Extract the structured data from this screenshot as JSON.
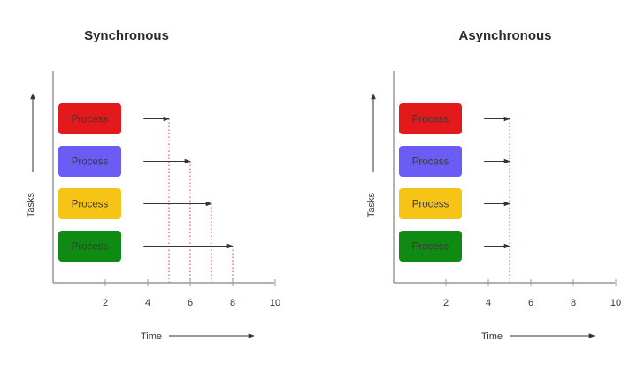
{
  "panels": [
    {
      "id": "sync",
      "title": "Synchronous",
      "y_label": "Tasks",
      "x_label": "Time",
      "x_ticks": [
        "2",
        "4",
        "6",
        "8",
        "10"
      ],
      "tasks": [
        {
          "label": "Process",
          "color": "#e3191c",
          "end": 5
        },
        {
          "label": "Process",
          "color": "#6a5cf5",
          "end": 6
        },
        {
          "label": "Process",
          "color": "#f6c417",
          "end": 7
        },
        {
          "label": "Process",
          "color": "#0f8a12",
          "end": 8
        }
      ]
    },
    {
      "id": "async",
      "title": "Asynchronous",
      "y_label": "Tasks",
      "x_label": "Time",
      "x_ticks": [
        "2",
        "4",
        "6",
        "8",
        "10"
      ],
      "tasks": [
        {
          "label": "Process",
          "color": "#e3191c",
          "end": 5
        },
        {
          "label": "Process",
          "color": "#6a5cf5",
          "end": 5
        },
        {
          "label": "Process",
          "color": "#f6c417",
          "end": 5
        },
        {
          "label": "Process",
          "color": "#0f8a12",
          "end": 5
        }
      ]
    }
  ]
}
